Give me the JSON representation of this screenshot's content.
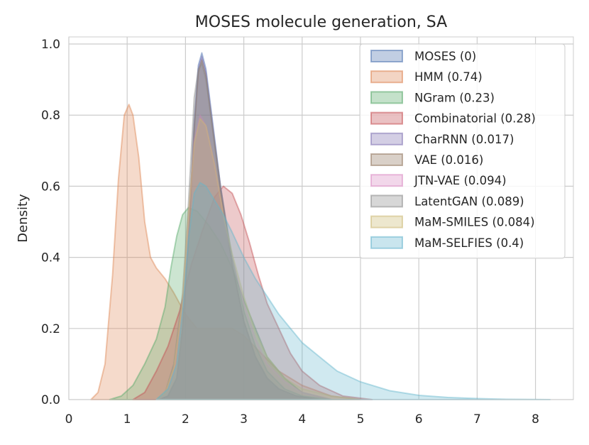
{
  "chart_data": {
    "type": "area",
    "title": "MOSES molecule generation, SA",
    "xlabel": "",
    "ylabel": "Density",
    "xlim": [
      0,
      8.65
    ],
    "ylim": [
      0,
      1.02
    ],
    "xticks": [
      "0",
      "1",
      "2",
      "3",
      "4",
      "5",
      "6",
      "7",
      "8"
    ],
    "yticks": [
      "0.0",
      "0.2",
      "0.4",
      "0.6",
      "0.8",
      "1.0"
    ],
    "grid": true,
    "legend_position": "top-right",
    "series": [
      {
        "name": "MOSES (0)",
        "color": "#4c72b0",
        "points": [
          [
            1.55,
            0
          ],
          [
            1.7,
            0.01
          ],
          [
            1.85,
            0.06
          ],
          [
            1.95,
            0.2
          ],
          [
            2.05,
            0.45
          ],
          [
            2.15,
            0.78
          ],
          [
            2.22,
            0.94
          ],
          [
            2.28,
            0.975
          ],
          [
            2.35,
            0.93
          ],
          [
            2.45,
            0.8
          ],
          [
            2.6,
            0.6
          ],
          [
            2.8,
            0.38
          ],
          [
            3.0,
            0.22
          ],
          [
            3.2,
            0.12
          ],
          [
            3.4,
            0.06
          ],
          [
            3.6,
            0.03
          ],
          [
            3.9,
            0.01
          ],
          [
            4.3,
            0
          ]
        ]
      },
      {
        "name": "HMM (0.74)",
        "color": "#dd8452",
        "points": [
          [
            0.38,
            0
          ],
          [
            0.5,
            0.02
          ],
          [
            0.62,
            0.1
          ],
          [
            0.75,
            0.35
          ],
          [
            0.85,
            0.62
          ],
          [
            0.95,
            0.8
          ],
          [
            1.03,
            0.83
          ],
          [
            1.1,
            0.8
          ],
          [
            1.2,
            0.68
          ],
          [
            1.3,
            0.5
          ],
          [
            1.4,
            0.4
          ],
          [
            1.5,
            0.37
          ],
          [
            1.65,
            0.34
          ],
          [
            1.8,
            0.3
          ],
          [
            2.0,
            0.24
          ],
          [
            2.2,
            0.2
          ],
          [
            2.5,
            0.2
          ],
          [
            2.8,
            0.2
          ],
          [
            3.0,
            0.18
          ],
          [
            3.3,
            0.13
          ],
          [
            3.6,
            0.08
          ],
          [
            4.0,
            0.04
          ],
          [
            4.5,
            0.01
          ],
          [
            5.0,
            0
          ]
        ]
      },
      {
        "name": "NGram (0.23)",
        "color": "#55a868",
        "points": [
          [
            0.7,
            0
          ],
          [
            0.9,
            0.01
          ],
          [
            1.1,
            0.04
          ],
          [
            1.3,
            0.1
          ],
          [
            1.5,
            0.17
          ],
          [
            1.65,
            0.26
          ],
          [
            1.75,
            0.37
          ],
          [
            1.85,
            0.46
          ],
          [
            1.95,
            0.52
          ],
          [
            2.05,
            0.54
          ],
          [
            2.2,
            0.53
          ],
          [
            2.4,
            0.49
          ],
          [
            2.6,
            0.44
          ],
          [
            2.8,
            0.37
          ],
          [
            3.0,
            0.28
          ],
          [
            3.2,
            0.2
          ],
          [
            3.4,
            0.12
          ],
          [
            3.7,
            0.06
          ],
          [
            4.0,
            0.02
          ],
          [
            4.5,
            0
          ]
        ]
      },
      {
        "name": "Combinatorial (0.28)",
        "color": "#c44e52",
        "points": [
          [
            1.1,
            0
          ],
          [
            1.3,
            0.02
          ],
          [
            1.5,
            0.08
          ],
          [
            1.7,
            0.15
          ],
          [
            1.9,
            0.25
          ],
          [
            2.1,
            0.38
          ],
          [
            2.3,
            0.48
          ],
          [
            2.5,
            0.57
          ],
          [
            2.65,
            0.6
          ],
          [
            2.8,
            0.58
          ],
          [
            2.95,
            0.52
          ],
          [
            3.1,
            0.44
          ],
          [
            3.25,
            0.35
          ],
          [
            3.4,
            0.27
          ],
          [
            3.6,
            0.2
          ],
          [
            3.8,
            0.13
          ],
          [
            4.0,
            0.08
          ],
          [
            4.3,
            0.04
          ],
          [
            4.7,
            0.01
          ],
          [
            5.2,
            0
          ]
        ]
      },
      {
        "name": "CharRNN (0.017)",
        "color": "#8172b3",
        "points": [
          [
            1.55,
            0
          ],
          [
            1.7,
            0.01
          ],
          [
            1.85,
            0.06
          ],
          [
            1.95,
            0.2
          ],
          [
            2.05,
            0.45
          ],
          [
            2.15,
            0.77
          ],
          [
            2.22,
            0.93
          ],
          [
            2.28,
            0.965
          ],
          [
            2.35,
            0.92
          ],
          [
            2.45,
            0.79
          ],
          [
            2.6,
            0.6
          ],
          [
            2.8,
            0.38
          ],
          [
            3.0,
            0.22
          ],
          [
            3.2,
            0.12
          ],
          [
            3.4,
            0.06
          ],
          [
            3.6,
            0.03
          ],
          [
            3.9,
            0.01
          ],
          [
            4.3,
            0
          ]
        ]
      },
      {
        "name": "VAE (0.016)",
        "color": "#937860",
        "points": [
          [
            1.55,
            0
          ],
          [
            1.7,
            0.01
          ],
          [
            1.85,
            0.06
          ],
          [
            1.95,
            0.2
          ],
          [
            2.05,
            0.44
          ],
          [
            2.15,
            0.76
          ],
          [
            2.22,
            0.92
          ],
          [
            2.28,
            0.955
          ],
          [
            2.35,
            0.91
          ],
          [
            2.45,
            0.78
          ],
          [
            2.6,
            0.59
          ],
          [
            2.8,
            0.38
          ],
          [
            3.0,
            0.22
          ],
          [
            3.2,
            0.12
          ],
          [
            3.4,
            0.06
          ],
          [
            3.6,
            0.03
          ],
          [
            3.9,
            0.01
          ],
          [
            4.3,
            0
          ]
        ]
      },
      {
        "name": "JTN-VAE (0.094)",
        "color": "#da8bc3",
        "points": [
          [
            1.5,
            0
          ],
          [
            1.65,
            0.02
          ],
          [
            1.8,
            0.08
          ],
          [
            1.95,
            0.26
          ],
          [
            2.05,
            0.5
          ],
          [
            2.15,
            0.73
          ],
          [
            2.25,
            0.8
          ],
          [
            2.35,
            0.77
          ],
          [
            2.5,
            0.66
          ],
          [
            2.65,
            0.52
          ],
          [
            2.8,
            0.4
          ],
          [
            3.0,
            0.27
          ],
          [
            3.2,
            0.17
          ],
          [
            3.4,
            0.1
          ],
          [
            3.7,
            0.05
          ],
          [
            4.0,
            0.02
          ],
          [
            4.5,
            0
          ]
        ]
      },
      {
        "name": "LatentGAN (0.089)",
        "color": "#8c8c8c",
        "points": [
          [
            1.5,
            0
          ],
          [
            1.65,
            0.02
          ],
          [
            1.8,
            0.1
          ],
          [
            1.95,
            0.3
          ],
          [
            2.05,
            0.55
          ],
          [
            2.15,
            0.85
          ],
          [
            2.22,
            0.93
          ],
          [
            2.28,
            0.945
          ],
          [
            2.35,
            0.9
          ],
          [
            2.45,
            0.78
          ],
          [
            2.6,
            0.6
          ],
          [
            2.8,
            0.4
          ],
          [
            3.0,
            0.25
          ],
          [
            3.2,
            0.15
          ],
          [
            3.4,
            0.08
          ],
          [
            3.7,
            0.03
          ],
          [
            4.0,
            0.01
          ],
          [
            4.5,
            0
          ]
        ]
      },
      {
        "name": "MaM-SMILES (0.084)",
        "color": "#ccb974",
        "points": [
          [
            1.5,
            0
          ],
          [
            1.65,
            0.02
          ],
          [
            1.8,
            0.09
          ],
          [
            1.95,
            0.28
          ],
          [
            2.05,
            0.52
          ],
          [
            2.15,
            0.72
          ],
          [
            2.25,
            0.79
          ],
          [
            2.35,
            0.77
          ],
          [
            2.5,
            0.66
          ],
          [
            2.65,
            0.52
          ],
          [
            2.8,
            0.41
          ],
          [
            3.0,
            0.29
          ],
          [
            3.2,
            0.19
          ],
          [
            3.4,
            0.12
          ],
          [
            3.7,
            0.06
          ],
          [
            4.0,
            0.03
          ],
          [
            4.5,
            0.01
          ],
          [
            5.0,
            0
          ]
        ]
      },
      {
        "name": "MaM-SELFIES (0.4)",
        "color": "#64b5cd",
        "points": [
          [
            1.5,
            0
          ],
          [
            1.7,
            0.03
          ],
          [
            1.85,
            0.1
          ],
          [
            1.95,
            0.25
          ],
          [
            2.05,
            0.45
          ],
          [
            2.15,
            0.58
          ],
          [
            2.25,
            0.61
          ],
          [
            2.35,
            0.6
          ],
          [
            2.5,
            0.56
          ],
          [
            2.65,
            0.52
          ],
          [
            2.8,
            0.47
          ],
          [
            3.0,
            0.4
          ],
          [
            3.2,
            0.34
          ],
          [
            3.4,
            0.29
          ],
          [
            3.6,
            0.24
          ],
          [
            3.8,
            0.2
          ],
          [
            4.0,
            0.16
          ],
          [
            4.3,
            0.12
          ],
          [
            4.6,
            0.08
          ],
          [
            5.0,
            0.05
          ],
          [
            5.5,
            0.025
          ],
          [
            6.0,
            0.012
          ],
          [
            6.5,
            0.006
          ],
          [
            7.0,
            0.003
          ],
          [
            7.5,
            0.001
          ],
          [
            8.25,
            0
          ]
        ]
      }
    ]
  }
}
